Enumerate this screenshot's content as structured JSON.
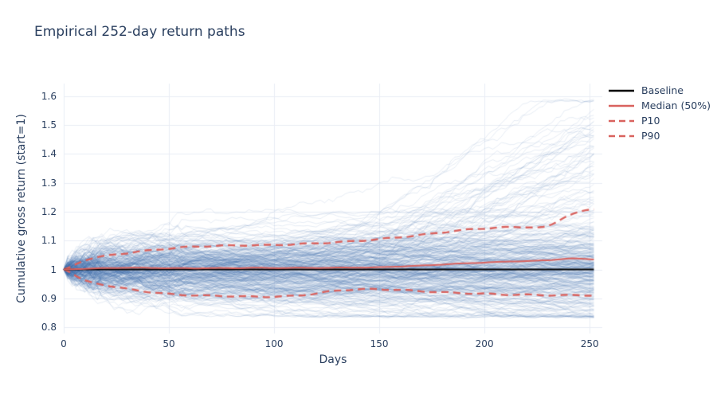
{
  "chart_data": {
    "type": "line",
    "title": "Empirical 252-day return paths",
    "xlabel": "Days",
    "ylabel": "Cumulative gross return (start=1)",
    "xlim": [
      0,
      256
    ],
    "ylim": [
      0.778,
      1.644
    ],
    "grid": true,
    "legend_position": "right-top",
    "x_ticks": {
      "values": [
        0,
        50,
        100,
        150,
        200,
        250
      ],
      "labels": [
        "0",
        "50",
        "100",
        "150",
        "200",
        "250"
      ]
    },
    "y_ticks": {
      "values": [
        0.8,
        0.9,
        1.0,
        1.1,
        1.2,
        1.3,
        1.4,
        1.5,
        1.6
      ],
      "labels": [
        "0.8",
        "0.9",
        "1",
        "1.1",
        "1.2",
        "1.3",
        "1.4",
        "1.5",
        "1.6"
      ]
    },
    "series_x": [
      0,
      10,
      20,
      30,
      40,
      50,
      60,
      70,
      80,
      90,
      100,
      110,
      120,
      130,
      140,
      150,
      160,
      170,
      180,
      190,
      200,
      210,
      220,
      230,
      240,
      252
    ],
    "series": [
      {
        "name": "Baseline",
        "color": "#000000",
        "dash": "solid",
        "width": 1.8,
        "values": [
          1,
          1,
          1,
          1,
          1,
          1,
          1,
          1,
          1,
          1,
          1,
          1,
          1,
          1,
          1,
          1,
          1,
          1,
          1,
          1,
          1,
          1,
          1,
          1,
          1,
          1
        ]
      },
      {
        "name": "Median (50%)",
        "color": "#d9625e",
        "dash": "solid",
        "width": 2,
        "values": [
          1.0,
          1.003,
          1.005,
          1.006,
          1.005,
          1.004,
          1.004,
          1.005,
          1.005,
          1.006,
          1.005,
          1.005,
          1.005,
          1.006,
          1.007,
          1.008,
          1.011,
          1.013,
          1.017,
          1.02,
          1.024,
          1.027,
          1.03,
          1.032,
          1.038,
          1.034
        ]
      },
      {
        "name": "P10",
        "color": "#d9625e",
        "dash": "dash",
        "width": 2.4,
        "values": [
          1.0,
          0.96,
          0.945,
          0.933,
          0.924,
          0.916,
          0.911,
          0.908,
          0.906,
          0.905,
          0.906,
          0.91,
          0.918,
          0.927,
          0.93,
          0.93,
          0.928,
          0.925,
          0.922,
          0.919,
          0.916,
          0.912,
          0.911,
          0.91,
          0.911,
          0.912
        ]
      },
      {
        "name": "P90",
        "color": "#d9625e",
        "dash": "dash",
        "width": 2.4,
        "values": [
          1.0,
          1.032,
          1.048,
          1.058,
          1.066,
          1.072,
          1.077,
          1.08,
          1.083,
          1.085,
          1.086,
          1.088,
          1.09,
          1.093,
          1.098,
          1.105,
          1.113,
          1.121,
          1.129,
          1.136,
          1.141,
          1.145,
          1.147,
          1.15,
          1.19,
          1.208
        ]
      }
    ],
    "ensemble": {
      "description": "Overlay of many empirical 252-day cumulative return paths starting at 1",
      "y_start": 1.0,
      "observed_final_range": [
        0.82,
        1.62
      ],
      "n_paths_drawn": 320,
      "color": "#3e6eaa",
      "opacity": 0.13,
      "seed": 11
    }
  },
  "colors": {
    "background": "#ffffff",
    "grid": "#e9edf5",
    "title_text": "#2a3f5f",
    "tick_text": "#2a3f5f",
    "path_blue": "#3e6eaa",
    "quantile_red": "#d9625e",
    "baseline_black": "#000000"
  }
}
